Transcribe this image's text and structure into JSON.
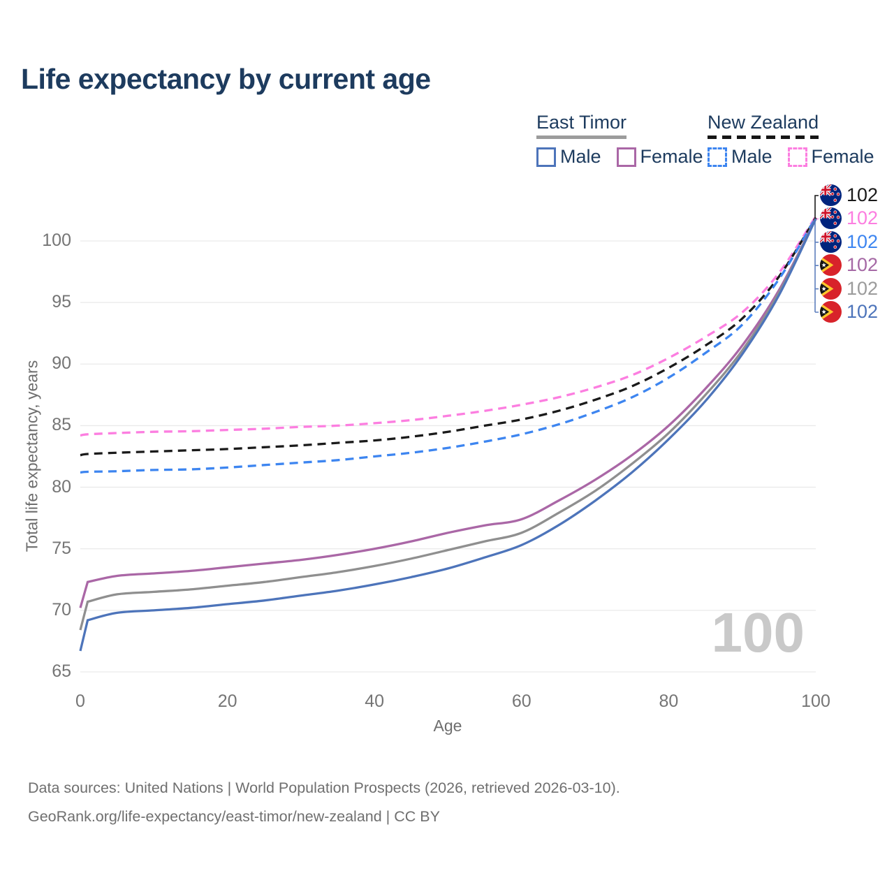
{
  "title": "Life expectancy by current age",
  "watermark": "100",
  "legend": {
    "groups": [
      {
        "label": "East Timor",
        "line_style": "solid",
        "underline_color": "#9c9c9c",
        "items": [
          {
            "label": "Male",
            "color": "#4d74ba"
          },
          {
            "label": "Female",
            "color": "#aa67a6"
          }
        ]
      },
      {
        "label": "New Zealand",
        "line_style": "dashed",
        "underline_color": "#161616",
        "items": [
          {
            "label": "Male",
            "color": "#3d85f0"
          },
          {
            "label": "Female",
            "color": "#fc7ee0"
          }
        ]
      }
    ]
  },
  "chart_data": {
    "type": "line",
    "title": "Life expectancy by current age",
    "xlabel": "Age",
    "ylabel": "Total life expectancy, years",
    "xlim": [
      0,
      100
    ],
    "ylim": [
      65,
      102.5
    ],
    "x_ticks": [
      0,
      20,
      40,
      60,
      80,
      100
    ],
    "y_ticks": [
      65,
      70,
      75,
      80,
      85,
      90,
      95,
      100
    ],
    "grid": true,
    "legend_position": "top-right",
    "x": [
      0,
      1,
      5,
      10,
      15,
      20,
      25,
      30,
      35,
      40,
      45,
      50,
      55,
      60,
      65,
      70,
      75,
      80,
      85,
      90,
      95,
      100
    ],
    "series": [
      {
        "name": "New Zealand Female",
        "color": "#fc7ee0",
        "dash": true,
        "values": [
          84.2,
          84.3,
          84.4,
          84.5,
          84.55,
          84.65,
          84.75,
          84.9,
          85.0,
          85.2,
          85.45,
          85.8,
          86.2,
          86.7,
          87.3,
          88.1,
          89.1,
          90.5,
          92.2,
          94.2,
          97.4,
          102.0
        ]
      },
      {
        "name": "New Zealand Both sexes",
        "color": "#1a1a1a",
        "dash": true,
        "values": [
          82.6,
          82.7,
          82.8,
          82.9,
          83.0,
          83.1,
          83.25,
          83.4,
          83.6,
          83.8,
          84.1,
          84.5,
          85.0,
          85.5,
          86.2,
          87.1,
          88.2,
          89.7,
          91.5,
          93.7,
          97.1,
          101.9
        ]
      },
      {
        "name": "New Zealand Male",
        "color": "#3d85f0",
        "dash": true,
        "values": [
          81.2,
          81.25,
          81.3,
          81.4,
          81.45,
          81.6,
          81.8,
          82.0,
          82.2,
          82.5,
          82.8,
          83.2,
          83.7,
          84.3,
          85.1,
          86.1,
          87.3,
          88.9,
          90.9,
          93.2,
          96.9,
          101.9
        ]
      },
      {
        "name": "East Timor Female",
        "color": "#aa67a6",
        "dash": false,
        "values": [
          70.2,
          72.3,
          72.8,
          73.0,
          73.2,
          73.5,
          73.8,
          74.1,
          74.5,
          75.0,
          75.6,
          76.3,
          76.9,
          77.4,
          78.9,
          80.6,
          82.6,
          85.0,
          88.0,
          91.5,
          96.0,
          101.8
        ]
      },
      {
        "name": "East Timor Both sexes",
        "color": "#8f8f8f",
        "dash": false,
        "values": [
          68.4,
          70.7,
          71.3,
          71.5,
          71.7,
          72.0,
          72.3,
          72.7,
          73.1,
          73.6,
          74.2,
          74.9,
          75.6,
          76.3,
          77.9,
          79.7,
          81.9,
          84.4,
          87.5,
          91.1,
          95.8,
          101.8
        ]
      },
      {
        "name": "East Timor Male",
        "color": "#4d74ba",
        "dash": false,
        "values": [
          66.7,
          69.2,
          69.8,
          70.0,
          70.2,
          70.5,
          70.8,
          71.2,
          71.6,
          72.1,
          72.7,
          73.4,
          74.3,
          75.3,
          76.9,
          78.9,
          81.2,
          83.9,
          87.0,
          90.8,
          95.6,
          101.8
        ]
      }
    ]
  },
  "end_labels": [
    {
      "country": "new-zealand",
      "value": "102",
      "color": "#1a1a1a"
    },
    {
      "country": "new-zealand",
      "value": "102",
      "color": "#fc7ee0"
    },
    {
      "country": "new-zealand",
      "value": "102",
      "color": "#3d85f0"
    },
    {
      "country": "east-timor",
      "value": "102",
      "color": "#a569a5"
    },
    {
      "country": "east-timor",
      "value": "102",
      "color": "#9b9b9b"
    },
    {
      "country": "east-timor",
      "value": "102",
      "color": "#4d74ba"
    }
  ],
  "footer": {
    "line1": "Data sources: United Nations | World Population Prospects (2026, retrieved 2026-03-10).",
    "line2": "GeoRank.org/life-expectancy/east-timor/new-zealand | CC BY"
  }
}
